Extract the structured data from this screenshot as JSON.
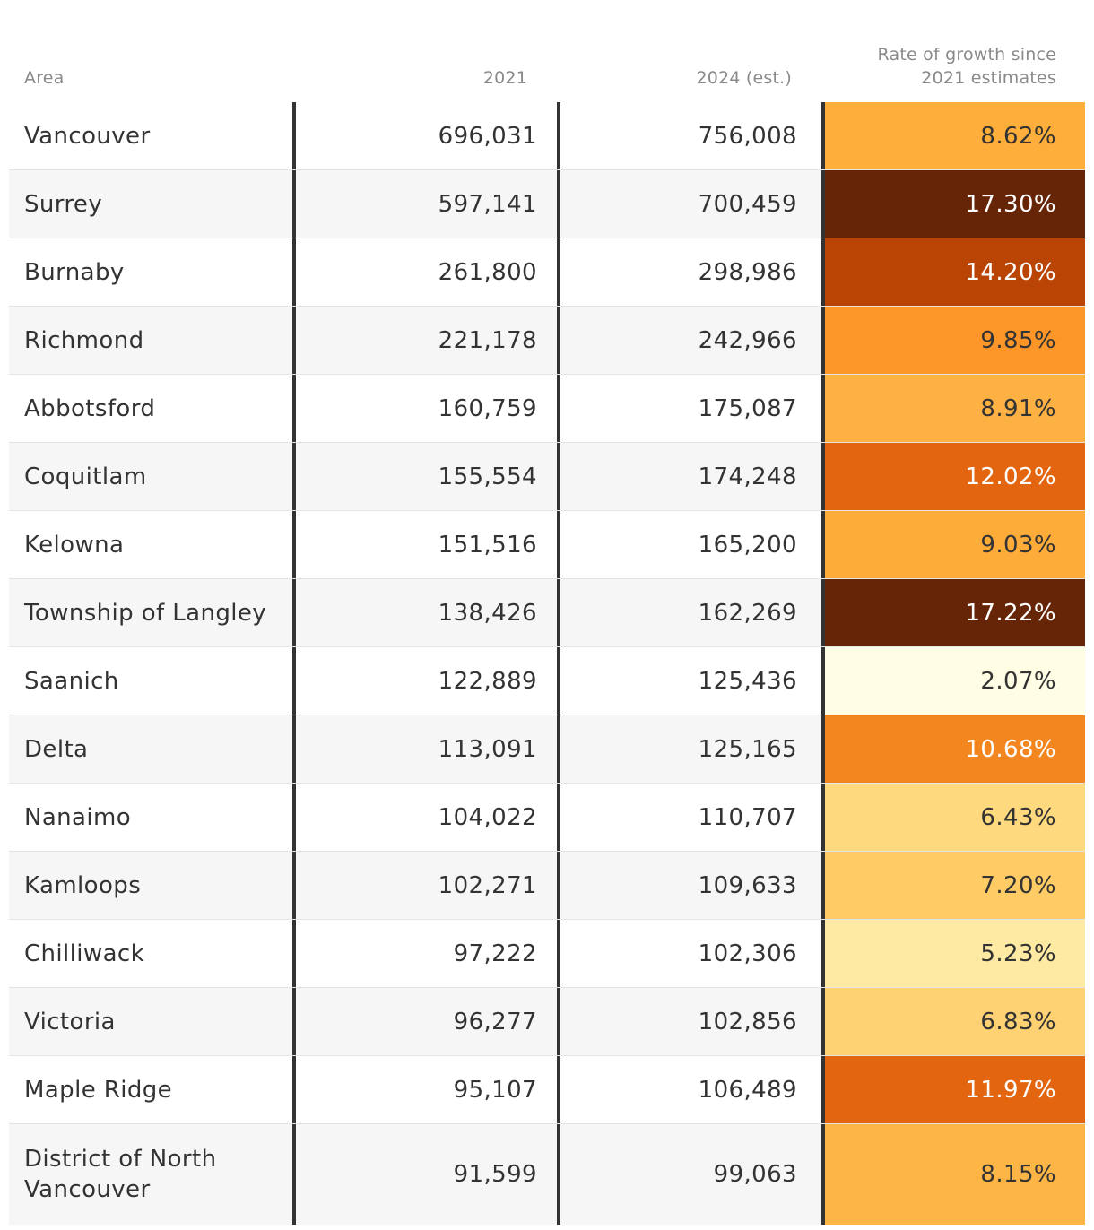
{
  "chart_data": {
    "type": "table",
    "columns": [
      "Area",
      "2021",
      "2024 (est.)",
      "Rate of growth since 2021 estimates"
    ],
    "rows": [
      {
        "area": "Vancouver",
        "pop_2021": "696,031",
        "pop_2024": "756,008",
        "growth": "8.62%",
        "color": "#fdae3b",
        "text_color": "#333333"
      },
      {
        "area": "Surrey",
        "pop_2021": "597,141",
        "pop_2024": "700,459",
        "growth": "17.30%",
        "color": "#662506",
        "text_color": "#ffffff"
      },
      {
        "area": "Burnaby",
        "pop_2021": "261,800",
        "pop_2024": "298,986",
        "growth": "14.20%",
        "color": "#b94403",
        "text_color": "#ffffff"
      },
      {
        "area": "Richmond",
        "pop_2021": "221,178",
        "pop_2024": "242,966",
        "growth": "9.85%",
        "color": "#fd9628",
        "text_color": "#333333"
      },
      {
        "area": "Abbotsford",
        "pop_2021": "160,759",
        "pop_2024": "175,087",
        "growth": "8.91%",
        "color": "#fdb143",
        "text_color": "#333333"
      },
      {
        "area": "Coquitlam",
        "pop_2021": "155,554",
        "pop_2024": "174,248",
        "growth": "12.02%",
        "color": "#e3650f",
        "text_color": "#ffffff"
      },
      {
        "area": "Kelowna",
        "pop_2021": "151,516",
        "pop_2024": "165,200",
        "growth": "9.03%",
        "color": "#fdab39",
        "text_color": "#333333"
      },
      {
        "area": "Township of Langley",
        "pop_2021": "138,426",
        "pop_2024": "162,269",
        "growth": "17.22%",
        "color": "#662506",
        "text_color": "#ffffff"
      },
      {
        "area": "Saanich",
        "pop_2021": "122,889",
        "pop_2024": "125,436",
        "growth": "2.07%",
        "color": "#fffde3",
        "text_color": "#333333"
      },
      {
        "area": "Delta",
        "pop_2021": "113,091",
        "pop_2024": "125,165",
        "growth": "10.68%",
        "color": "#f4861f",
        "text_color": "#ffffff"
      },
      {
        "area": "Nanaimo",
        "pop_2021": "104,022",
        "pop_2024": "110,707",
        "growth": "6.43%",
        "color": "#fed97e",
        "text_color": "#333333"
      },
      {
        "area": "Kamloops",
        "pop_2021": "102,271",
        "pop_2024": "109,633",
        "growth": "7.20%",
        "color": "#fecb65",
        "text_color": "#333333"
      },
      {
        "area": "Chilliwack",
        "pop_2021": "97,222",
        "pop_2024": "102,306",
        "growth": "5.23%",
        "color": "#feeaa2",
        "text_color": "#333333"
      },
      {
        "area": "Victoria",
        "pop_2021": "96,277",
        "pop_2024": "102,856",
        "growth": "6.83%",
        "color": "#fed172",
        "text_color": "#333333"
      },
      {
        "area": "Maple Ridge",
        "pop_2021": "95,107",
        "pop_2024": "106,489",
        "growth": "11.97%",
        "color": "#e3650f",
        "text_color": "#ffffff"
      },
      {
        "area": "District of North Vancouver",
        "pop_2021": "91,599",
        "pop_2024": "99,063",
        "growth": "8.15%",
        "color": "#fdb546",
        "text_color": "#333333"
      }
    ]
  },
  "header": {
    "area": "Area",
    "y2021": "2021",
    "y2024": "2024 (est.)",
    "rate_line1": "Rate of growth since",
    "rate_line2": "2021 estimates"
  }
}
